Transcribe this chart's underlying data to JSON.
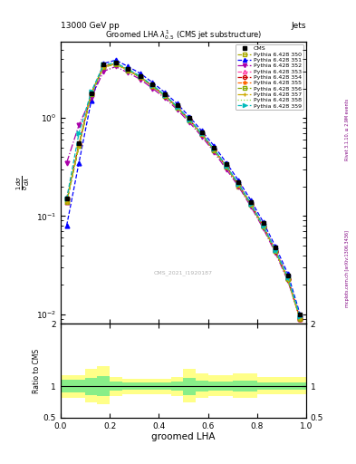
{
  "title": "13000 GeV pp",
  "title_right": "Jets",
  "plot_title": "Groomed LHA $\\lambda^{1}_{0.5}$ (CMS jet substructure)",
  "xlabel": "groomed LHA",
  "ylabel_long": "1 / mathrm{d}N / mathrm{d} lambda",
  "ylabel_ratio": "Ratio to CMS",
  "watermark": "CMS_2021_I1920187",
  "rivet_text": "Rivet 3.1.10, ≥ 2.9M events",
  "arxiv_text": "mcplots.cern.ch [arXiv:1306.3436]",
  "cms_x": [
    0.025,
    0.075,
    0.125,
    0.175,
    0.225,
    0.275,
    0.325,
    0.375,
    0.425,
    0.475,
    0.525,
    0.575,
    0.625,
    0.675,
    0.725,
    0.775,
    0.825,
    0.875,
    0.925,
    0.975
  ],
  "cms_y": [
    0.15,
    0.55,
    1.8,
    3.5,
    3.7,
    3.2,
    2.7,
    2.2,
    1.75,
    1.35,
    1.0,
    0.72,
    0.5,
    0.34,
    0.22,
    0.14,
    0.085,
    0.048,
    0.025,
    0.01
  ],
  "pythia_x": [
    0.025,
    0.075,
    0.125,
    0.175,
    0.225,
    0.275,
    0.325,
    0.375,
    0.425,
    0.475,
    0.525,
    0.575,
    0.625,
    0.675,
    0.725,
    0.775,
    0.825,
    0.875,
    0.925,
    0.975
  ],
  "series": [
    {
      "label": "Pythia 6.428 350",
      "color": "#aaaa00",
      "linestyle": "--",
      "marker": "s",
      "markerfacecolor": "none",
      "y": [
        0.14,
        0.52,
        1.75,
        3.3,
        3.55,
        3.05,
        2.6,
        2.1,
        1.68,
        1.28,
        0.95,
        0.68,
        0.47,
        0.32,
        0.2,
        0.13,
        0.078,
        0.044,
        0.023,
        0.009
      ]
    },
    {
      "label": "Pythia 6.428 351",
      "color": "#0000ff",
      "linestyle": "--",
      "marker": "^",
      "markerfacecolor": "#0000ff",
      "y": [
        0.08,
        0.35,
        1.5,
        3.6,
        3.9,
        3.35,
        2.85,
        2.3,
        1.82,
        1.4,
        1.03,
        0.74,
        0.52,
        0.35,
        0.23,
        0.145,
        0.087,
        0.049,
        0.026,
        0.01
      ]
    },
    {
      "label": "Pythia 6.428 352",
      "color": "#aa00aa",
      "linestyle": "-.",
      "marker": "v",
      "markerfacecolor": "#aa00aa",
      "y": [
        0.35,
        0.85,
        1.6,
        3.0,
        3.35,
        2.9,
        2.48,
        2.0,
        1.6,
        1.22,
        0.9,
        0.65,
        0.45,
        0.3,
        0.2,
        0.125,
        0.075,
        0.042,
        0.022,
        0.009
      ]
    },
    {
      "label": "Pythia 6.428 353",
      "color": "#ff44aa",
      "linestyle": "--",
      "marker": "^",
      "markerfacecolor": "none",
      "y": [
        0.14,
        0.53,
        1.78,
        3.4,
        3.6,
        3.1,
        2.62,
        2.12,
        1.7,
        1.3,
        0.96,
        0.69,
        0.48,
        0.32,
        0.21,
        0.133,
        0.08,
        0.045,
        0.024,
        0.009
      ]
    },
    {
      "label": "Pythia 6.428 354",
      "color": "#cc0000",
      "linestyle": "--",
      "marker": "o",
      "markerfacecolor": "none",
      "y": [
        0.15,
        0.54,
        1.8,
        3.35,
        3.58,
        3.08,
        2.61,
        2.11,
        1.69,
        1.29,
        0.955,
        0.685,
        0.475,
        0.32,
        0.21,
        0.132,
        0.079,
        0.044,
        0.023,
        0.009
      ]
    },
    {
      "label": "Pythia 6.428 355",
      "color": "#ff6600",
      "linestyle": "--",
      "marker": "*",
      "markerfacecolor": "#ff6600",
      "y": [
        0.14,
        0.53,
        1.79,
        3.37,
        3.59,
        3.09,
        2.62,
        2.12,
        1.7,
        1.295,
        0.96,
        0.687,
        0.477,
        0.322,
        0.211,
        0.133,
        0.079,
        0.044,
        0.023,
        0.009
      ]
    },
    {
      "label": "Pythia 6.428 356",
      "color": "#88aa00",
      "linestyle": "--",
      "marker": "s",
      "markerfacecolor": "none",
      "y": [
        0.14,
        0.52,
        1.76,
        3.32,
        3.56,
        3.07,
        2.6,
        2.1,
        1.68,
        1.28,
        0.948,
        0.679,
        0.472,
        0.318,
        0.208,
        0.131,
        0.078,
        0.044,
        0.023,
        0.009
      ]
    },
    {
      "label": "Pythia 6.428 357",
      "color": "#ccaa00",
      "linestyle": "-.",
      "marker": "+",
      "markerfacecolor": "#ccaa00",
      "y": [
        0.14,
        0.52,
        1.77,
        3.33,
        3.57,
        3.07,
        2.6,
        2.1,
        1.68,
        1.28,
        0.95,
        0.68,
        0.472,
        0.319,
        0.209,
        0.131,
        0.078,
        0.044,
        0.023,
        0.009
      ]
    },
    {
      "label": "Pythia 6.428 358",
      "color": "#88dd44",
      "linestyle": ":",
      "marker": "None",
      "markerfacecolor": "none",
      "y": [
        0.14,
        0.53,
        1.77,
        3.34,
        3.57,
        3.08,
        2.61,
        2.11,
        1.685,
        1.285,
        0.951,
        0.681,
        0.473,
        0.319,
        0.209,
        0.131,
        0.078,
        0.044,
        0.023,
        0.009
      ]
    },
    {
      "label": "Pythia 6.428 359",
      "color": "#00bbbb",
      "linestyle": "--",
      "marker": ">",
      "markerfacecolor": "#00bbbb",
      "y": [
        0.15,
        0.7,
        1.85,
        3.5,
        3.65,
        3.15,
        2.67,
        2.16,
        1.72,
        1.31,
        0.97,
        0.695,
        0.483,
        0.326,
        0.213,
        0.134,
        0.08,
        0.045,
        0.024,
        0.0095
      ]
    }
  ],
  "ratio_x_edges": [
    0.0,
    0.05,
    0.1,
    0.15,
    0.2,
    0.25,
    0.3,
    0.35,
    0.4,
    0.45,
    0.5,
    0.55,
    0.6,
    0.65,
    0.7,
    0.75,
    0.8,
    0.85,
    0.9,
    0.95,
    1.0
  ],
  "ratio_yellow_y_low": [
    0.82,
    0.82,
    0.75,
    0.72,
    0.85,
    0.88,
    0.88,
    0.88,
    0.88,
    0.85,
    0.75,
    0.82,
    0.85,
    0.85,
    0.82,
    0.82,
    0.88,
    0.88,
    0.88,
    0.88
  ],
  "ratio_yellow_y_high": [
    1.18,
    1.18,
    1.28,
    1.32,
    1.15,
    1.12,
    1.12,
    1.12,
    1.12,
    1.15,
    1.28,
    1.2,
    1.18,
    1.18,
    1.2,
    1.2,
    1.15,
    1.15,
    1.15,
    1.15
  ],
  "ratio_green_y_low": [
    0.9,
    0.9,
    0.86,
    0.84,
    0.93,
    0.94,
    0.94,
    0.94,
    0.94,
    0.93,
    0.86,
    0.91,
    0.93,
    0.93,
    0.91,
    0.91,
    0.94,
    0.94,
    0.94,
    0.94
  ],
  "ratio_green_y_high": [
    1.1,
    1.1,
    1.14,
    1.16,
    1.07,
    1.06,
    1.06,
    1.06,
    1.06,
    1.07,
    1.14,
    1.09,
    1.07,
    1.07,
    1.09,
    1.09,
    1.06,
    1.06,
    1.06,
    1.06
  ],
  "xlim": [
    0.0,
    1.0
  ],
  "ylim_main": [
    0.008,
    6.0
  ],
  "ylim_ratio": [
    0.5,
    2.0
  ]
}
